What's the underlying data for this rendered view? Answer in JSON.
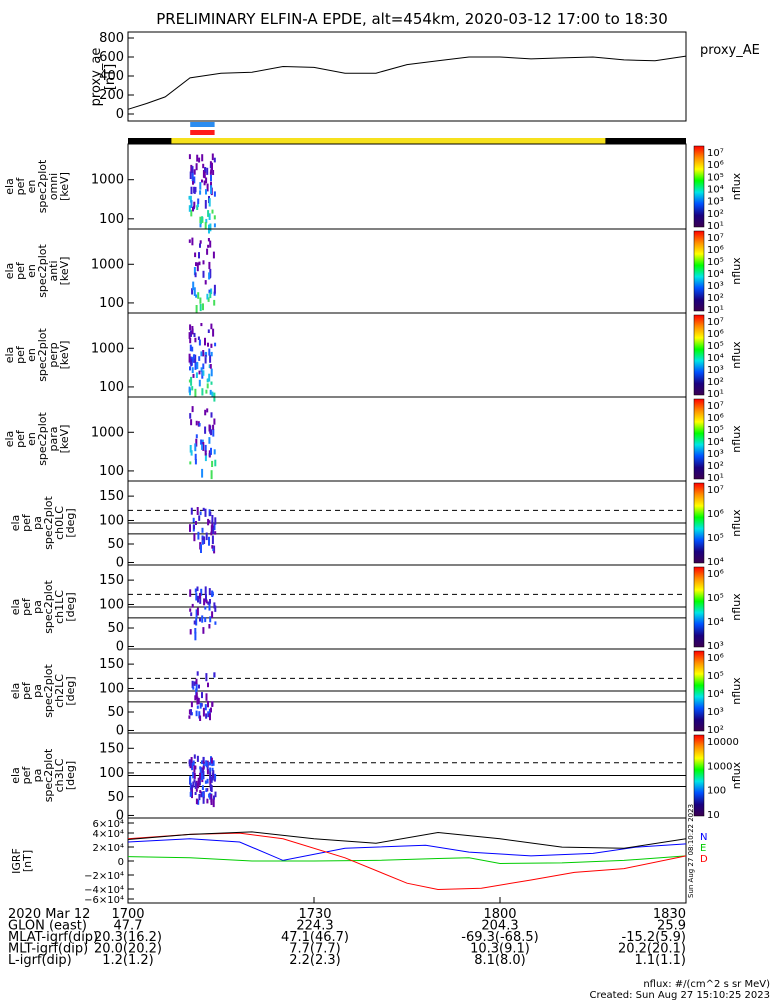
{
  "title": "PRELIMINARY ELFIN-A EPDE, alt=454km, 2020-03-12 17:00 to 18:30",
  "panels": [
    {
      "id": "proxy_ae",
      "ylabel": [
        "proxy_ae",
        "[nT]"
      ],
      "ticks": [
        "800",
        "600",
        "400",
        "200",
        "0"
      ],
      "right_label": "proxy_AE"
    },
    {
      "id": "omni",
      "ylabel": [
        "ela",
        "pef",
        "en",
        "spec2plot",
        "omni",
        "[keV]"
      ],
      "ticks": [
        "1000",
        "100"
      ],
      "cb_label": "nflux"
    },
    {
      "id": "anti",
      "ylabel": [
        "ela",
        "pef",
        "en",
        "spec2plot",
        "anti",
        "[keV]"
      ],
      "ticks": [
        "1000",
        "100"
      ],
      "cb_label": "nflux"
    },
    {
      "id": "perp",
      "ylabel": [
        "ela",
        "pef",
        "en",
        "spec2plot",
        "perp",
        "[keV]"
      ],
      "ticks": [
        "1000",
        "100"
      ],
      "cb_label": "nflux"
    },
    {
      "id": "para",
      "ylabel": [
        "ela",
        "pef",
        "en",
        "spec2plot",
        "para",
        "[keV]"
      ],
      "ticks": [
        "1000",
        "100"
      ],
      "cb_label": "nflux"
    },
    {
      "id": "ch0",
      "ylabel": [
        "ela",
        "pef",
        "pa",
        "spec2plot",
        "ch0LC",
        "[deg]"
      ],
      "ticks": [
        "150",
        "100",
        "50",
        "0"
      ],
      "cb_label": "nflux"
    },
    {
      "id": "ch1",
      "ylabel": [
        "ela",
        "pef",
        "pa",
        "spec2plot",
        "ch1LC",
        "[deg]"
      ],
      "ticks": [
        "150",
        "100",
        "50",
        "0"
      ],
      "cb_label": "nflux"
    },
    {
      "id": "ch2",
      "ylabel": [
        "ela",
        "pef",
        "pa",
        "spec2plot",
        "ch2LC",
        "[deg]"
      ],
      "ticks": [
        "150",
        "100",
        "50",
        "0"
      ],
      "cb_label": "nflux"
    },
    {
      "id": "ch3",
      "ylabel": [
        "ela",
        "pef",
        "pa",
        "spec2plot",
        "ch3LC",
        "[deg]"
      ],
      "ticks": [
        "150",
        "100",
        "50",
        "0"
      ],
      "cb_label": "nflux"
    },
    {
      "id": "igrf",
      "ylabel": [
        "IGRF",
        "[nT]"
      ],
      "ticks": [
        "6×10⁴",
        "4×10⁴",
        "2×10⁴",
        "0",
        "−2×10⁴",
        "−4×10⁴",
        "−6×10⁴"
      ],
      "legend": [
        "N",
        "E",
        "D"
      ]
    }
  ],
  "colorbars": [
    [
      "10⁷",
      "10⁶",
      "10⁵",
      "10⁴",
      "10³",
      "10²",
      "10¹"
    ],
    [
      "10⁷",
      "10⁶",
      "10⁵",
      "10⁴",
      "10³",
      "10²",
      "10¹"
    ],
    [
      "10⁷",
      "10⁶",
      "10⁵",
      "10⁴",
      "10³",
      "10²",
      "10¹"
    ],
    [
      "10⁷",
      "10⁶",
      "10⁵",
      "10⁴",
      "10³",
      "10²",
      "10¹"
    ],
    [
      "10⁷",
      "10⁶",
      "10⁵",
      "10⁴"
    ],
    [
      "10⁶",
      "10⁵",
      "10⁴",
      "10³"
    ],
    [
      "10⁶",
      "10⁵",
      "10⁴",
      "10³",
      "10²"
    ],
    [
      "10000",
      "1000",
      "100",
      "10"
    ]
  ],
  "xaxis": {
    "rows": [
      {
        "label": "2020 Mar 12",
        "values": [
          "1700",
          "1730",
          "1800",
          "1830"
        ]
      },
      {
        "label": "GLON (east)",
        "values": [
          "47.7",
          "224.3",
          "204.3",
          "25.9"
        ]
      },
      {
        "label": "MLAT-igrf(dip)",
        "values": [
          "20.3(16.2)",
          "47.1(46.7)",
          "-69.3(-68.5)",
          "-15.2(5.9)"
        ]
      },
      {
        "label": "MLT-igrf(dip)",
        "values": [
          "20.0(20.2)",
          "7.7(7.7)",
          "10.3(9.1)",
          "20.2(20.1)"
        ]
      },
      {
        "label": "L-igrf(dip)",
        "values": [
          "1.2(1.2)",
          "2.2(2.3)",
          "8.1(8.0)",
          "1.1(1.1)"
        ]
      }
    ]
  },
  "footer": {
    "units": "nflux: #/(cm^2 s sr MeV)",
    "created": "Created: Sun Aug 27 15:10:25 2023",
    "side_stamp": "Sun Aug 27 08:10:22 2023"
  },
  "chart_data": {
    "type": "line",
    "title": "PRELIMINARY ELFIN-A EPDE, alt=454km, 2020-03-12 17:00 to 18:30",
    "x_range": [
      "17:00",
      "18:30"
    ],
    "proxy_ae": {
      "ylim": [
        0,
        800
      ],
      "x": [
        "17:00",
        "17:03",
        "17:06",
        "17:10",
        "17:15",
        "17:20",
        "17:25",
        "17:30",
        "17:35",
        "17:40",
        "17:45",
        "17:50",
        "17:55",
        "18:00",
        "18:05",
        "18:10",
        "18:15",
        "18:20",
        "18:25",
        "18:30"
      ],
      "values": [
        50,
        110,
        180,
        380,
        430,
        440,
        500,
        490,
        430,
        430,
        520,
        560,
        600,
        600,
        580,
        590,
        600,
        570,
        560,
        610
      ]
    },
    "igrf": {
      "ylim": [
        -60000,
        60000
      ],
      "series": [
        {
          "name": "N",
          "color": "#0000ff",
          "x_min": [
            0,
            10,
            18,
            25,
            35,
            48,
            55,
            65,
            75,
            82,
            90
          ],
          "values": [
            30000,
            35000,
            30000,
            1000,
            20000,
            25000,
            14000,
            8000,
            12000,
            22000,
            27000
          ]
        },
        {
          "name": "E",
          "color": "#00cc00",
          "x_min": [
            0,
            10,
            20,
            30,
            40,
            50,
            55,
            60,
            70,
            80,
            90
          ],
          "values": [
            7000,
            5000,
            0,
            0,
            1000,
            4000,
            5000,
            -4000,
            -3000,
            1000,
            8000
          ]
        },
        {
          "name": "D",
          "color": "#ff0000",
          "x_min": [
            0,
            10,
            18,
            25,
            35,
            45,
            50,
            57,
            65,
            72,
            80,
            90
          ],
          "values": [
            35000,
            42000,
            44000,
            35000,
            5000,
            -35000,
            -45000,
            -43000,
            -30000,
            -18000,
            -12000,
            8000
          ]
        },
        {
          "name": "total",
          "color": "#000000",
          "x_min": [
            0,
            10,
            20,
            30,
            40,
            50,
            60,
            70,
            80,
            90
          ],
          "values": [
            34000,
            42000,
            46000,
            35000,
            28000,
            45000,
            35000,
            22000,
            20000,
            35000
          ]
        }
      ]
    },
    "spectrograms": {
      "active_window": [
        "17:11",
        "17:13"
      ],
      "energy_ticks_keV": [
        100,
        1000
      ],
      "pitch_angle_ticks_deg": [
        0,
        50,
        100,
        150
      ]
    }
  }
}
